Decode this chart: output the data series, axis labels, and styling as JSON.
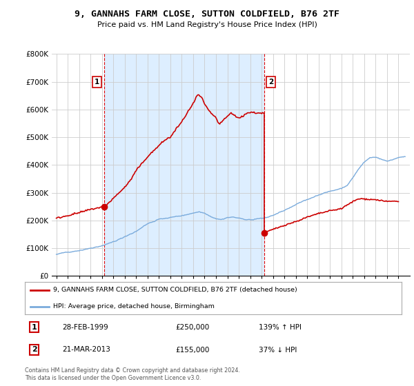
{
  "title": "9, GANNAHS FARM CLOSE, SUTTON COLDFIELD, B76 2TF",
  "subtitle": "Price paid vs. HM Land Registry's House Price Index (HPI)",
  "legend_label_red": "9, GANNAHS FARM CLOSE, SUTTON COLDFIELD, B76 2TF (detached house)",
  "legend_label_blue": "HPI: Average price, detached house, Birmingham",
  "transactions": [
    {
      "num": 1,
      "date_year": 1999.17,
      "price": 250000,
      "label": "28-FEB-1999",
      "amount": "£250,000",
      "pct": "139% ↑ HPI"
    },
    {
      "num": 2,
      "date_year": 2013.22,
      "price": 155000,
      "label": "21-MAR-2013",
      "amount": "£155,000",
      "pct": "37% ↓ HPI"
    }
  ],
  "footer": "Contains HM Land Registry data © Crown copyright and database right 2024.\nThis data is licensed under the Open Government Licence v3.0.",
  "ylim": [
    0,
    800000
  ],
  "yticks": [
    0,
    100000,
    200000,
    300000,
    400000,
    500000,
    600000,
    700000,
    800000
  ],
  "ytick_labels": [
    "£0",
    "£100K",
    "£200K",
    "£300K",
    "£400K",
    "£500K",
    "£600K",
    "£700K",
    "£800K"
  ],
  "red_color": "#cc0000",
  "blue_color": "#7aabdc",
  "shade_color": "#ddeeff",
  "vline_color": "#dd0000",
  "background_color": "#ffffff",
  "grid_color": "#cccccc",
  "xlim_left": 1994.6,
  "xlim_right": 2026.0,
  "hpi_keypoints": [
    [
      1995.0,
      78000
    ],
    [
      1996.0,
      85000
    ],
    [
      1997.0,
      93000
    ],
    [
      1998.0,
      103000
    ],
    [
      1999.0,
      113000
    ],
    [
      2000.0,
      128000
    ],
    [
      2001.0,
      145000
    ],
    [
      2002.0,
      165000
    ],
    [
      2003.0,
      193000
    ],
    [
      2004.0,
      210000
    ],
    [
      2005.0,
      215000
    ],
    [
      2006.0,
      222000
    ],
    [
      2007.0,
      232000
    ],
    [
      2007.5,
      237000
    ],
    [
      2008.0,
      232000
    ],
    [
      2008.5,
      220000
    ],
    [
      2009.0,
      210000
    ],
    [
      2009.5,
      208000
    ],
    [
      2010.0,
      213000
    ],
    [
      2010.5,
      215000
    ],
    [
      2011.0,
      212000
    ],
    [
      2011.5,
      208000
    ],
    [
      2012.0,
      206000
    ],
    [
      2012.5,
      207000
    ],
    [
      2013.0,
      208000
    ],
    [
      2013.5,
      212000
    ],
    [
      2014.0,
      220000
    ],
    [
      2015.0,
      238000
    ],
    [
      2016.0,
      258000
    ],
    [
      2017.0,
      278000
    ],
    [
      2018.0,
      295000
    ],
    [
      2019.0,
      308000
    ],
    [
      2020.0,
      318000
    ],
    [
      2020.5,
      328000
    ],
    [
      2021.0,
      355000
    ],
    [
      2021.5,
      385000
    ],
    [
      2022.0,
      410000
    ],
    [
      2022.5,
      425000
    ],
    [
      2023.0,
      428000
    ],
    [
      2023.5,
      420000
    ],
    [
      2024.0,
      415000
    ],
    [
      2024.5,
      420000
    ],
    [
      2025.0,
      428000
    ],
    [
      2025.5,
      430000
    ]
  ],
  "red_keypoints_seg1": [
    [
      1995.0,
      208000
    ],
    [
      1996.0,
      218000
    ],
    [
      1997.0,
      228000
    ],
    [
      1998.0,
      240000
    ],
    [
      1999.17,
      250000
    ],
    [
      1999.5,
      260000
    ],
    [
      2000.0,
      280000
    ],
    [
      2001.0,
      320000
    ],
    [
      2001.5,
      345000
    ],
    [
      2002.0,
      380000
    ],
    [
      2003.0,
      430000
    ],
    [
      2004.0,
      470000
    ],
    [
      2004.5,
      490000
    ],
    [
      2005.0,
      500000
    ],
    [
      2005.5,
      530000
    ],
    [
      2006.0,
      555000
    ],
    [
      2006.5,
      590000
    ],
    [
      2007.0,
      620000
    ],
    [
      2007.3,
      648000
    ],
    [
      2007.5,
      652000
    ],
    [
      2007.8,
      640000
    ],
    [
      2008.0,
      618000
    ],
    [
      2008.5,
      590000
    ],
    [
      2009.0,
      570000
    ],
    [
      2009.3,
      545000
    ],
    [
      2009.6,
      560000
    ],
    [
      2010.0,
      575000
    ],
    [
      2010.3,
      588000
    ],
    [
      2010.6,
      580000
    ],
    [
      2011.0,
      568000
    ],
    [
      2011.3,
      575000
    ],
    [
      2011.6,
      585000
    ],
    [
      2012.0,
      590000
    ],
    [
      2012.5,
      588000
    ],
    [
      2013.0,
      587000
    ],
    [
      2013.22,
      587000
    ]
  ],
  "red_keypoints_seg2": [
    [
      2013.22,
      155000
    ],
    [
      2013.5,
      160000
    ],
    [
      2014.0,
      168000
    ],
    [
      2015.0,
      183000
    ],
    [
      2016.0,
      196000
    ],
    [
      2017.0,
      212000
    ],
    [
      2018.0,
      225000
    ],
    [
      2019.0,
      235000
    ],
    [
      2020.0,
      243000
    ],
    [
      2021.0,
      268000
    ],
    [
      2021.5,
      278000
    ],
    [
      2022.0,
      278000
    ],
    [
      2022.5,
      276000
    ],
    [
      2023.0,
      275000
    ],
    [
      2023.5,
      272000
    ],
    [
      2024.0,
      268000
    ],
    [
      2024.5,
      270000
    ],
    [
      2025.0,
      268000
    ]
  ]
}
